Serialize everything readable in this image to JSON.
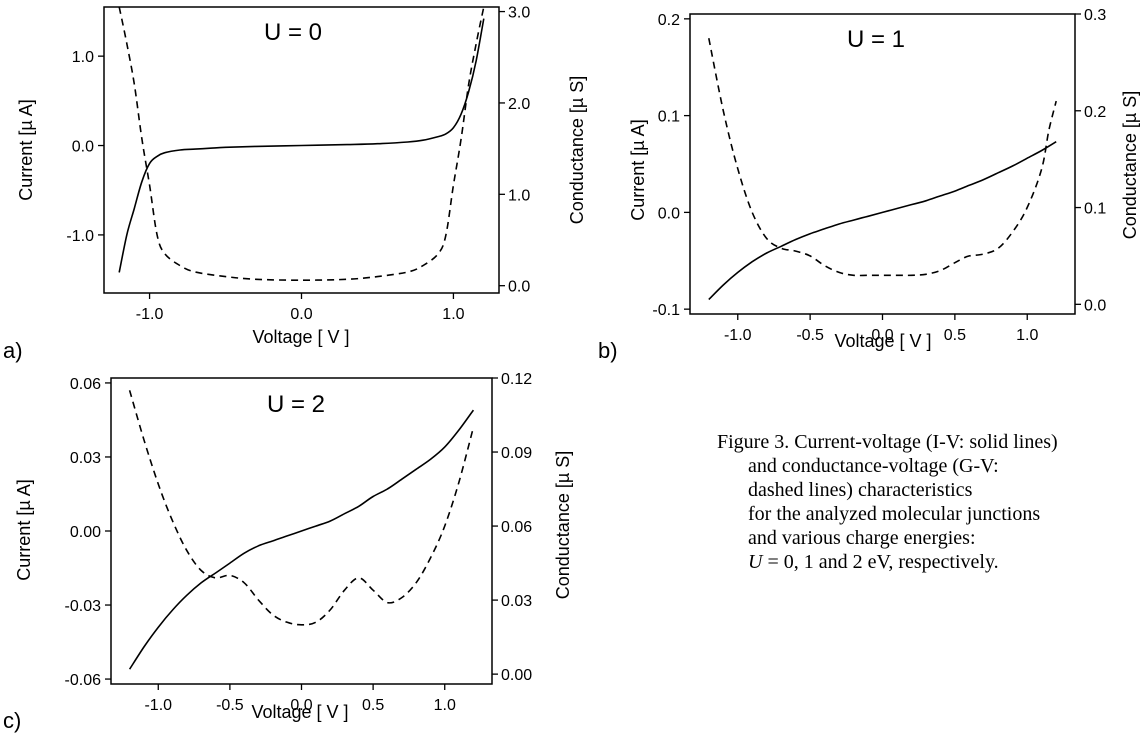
{
  "chart_data": [
    {
      "type": "line",
      "panel_label": "a)",
      "title": "U = 0",
      "xlabel": "Voltage [ V ]",
      "ylabel": "Current [µ A]",
      "y2label": "Conductance [µ S]",
      "xlim": [
        -1.3,
        1.3
      ],
      "ylim": [
        -1.65,
        1.55
      ],
      "y2lim": [
        -0.08,
        3.05
      ],
      "xticks": [
        -1.0,
        0.0,
        1.0
      ],
      "xtick_labels": [
        "-1.0",
        "0.0",
        "1.0"
      ],
      "yticks": [
        -1.0,
        0.0,
        1.0
      ],
      "ytick_labels": [
        "-1.0",
        "0.0",
        "1.0"
      ],
      "y2ticks": [
        0.0,
        1.0,
        2.0,
        3.0
      ],
      "y2tick_labels": [
        "0.0",
        "1.0",
        "2.0",
        "3.0"
      ],
      "series": [
        {
          "axis": "left",
          "style": "solid",
          "x": [
            -1.2,
            -1.15,
            -1.1,
            -1.05,
            -1.0,
            -0.95,
            -0.9,
            -0.8,
            -0.7,
            -0.6,
            -0.5,
            -0.3,
            0.0,
            0.3,
            0.5,
            0.7,
            0.8,
            0.9,
            0.95,
            1.0,
            1.05,
            1.1,
            1.15,
            1.2
          ],
          "y": [
            -1.42,
            -1.0,
            -0.7,
            -0.4,
            -0.2,
            -0.12,
            -0.08,
            -0.05,
            -0.04,
            -0.03,
            -0.02,
            -0.01,
            0.0,
            0.01,
            0.02,
            0.04,
            0.06,
            0.1,
            0.13,
            0.2,
            0.35,
            0.6,
            0.95,
            1.42
          ]
        },
        {
          "axis": "right",
          "style": "dashed",
          "x": [
            -1.2,
            -1.15,
            -1.1,
            -1.05,
            -1.0,
            -0.95,
            -0.9,
            -0.8,
            -0.7,
            -0.5,
            -0.3,
            0.0,
            0.3,
            0.5,
            0.7,
            0.8,
            0.9,
            0.95,
            1.0,
            1.05,
            1.1,
            1.15,
            1.2
          ],
          "y": [
            3.05,
            2.65,
            2.2,
            1.6,
            1.1,
            0.55,
            0.35,
            0.22,
            0.15,
            0.1,
            0.07,
            0.06,
            0.07,
            0.1,
            0.15,
            0.22,
            0.35,
            0.55,
            1.1,
            1.6,
            2.2,
            2.65,
            3.05
          ]
        }
      ]
    },
    {
      "type": "line",
      "panel_label": "b)",
      "title": "U = 1",
      "xlabel": "Voltage [ V ]",
      "ylabel": "Current [µ A]",
      "y2label": "Conductance [µ S]",
      "xlim": [
        -1.33,
        1.33
      ],
      "ylim": [
        -0.105,
        0.205
      ],
      "y2lim": [
        -0.01,
        0.3
      ],
      "xticks": [
        -1.0,
        -0.5,
        0.0,
        0.5,
        1.0
      ],
      "xtick_labels": [
        "-1.0",
        "-0.5",
        "0.0",
        "0.5",
        "1.0"
      ],
      "yticks": [
        -0.1,
        0.0,
        0.1,
        0.2
      ],
      "ytick_labels": [
        "-0.1",
        "0.0",
        "0.1",
        "0.2"
      ],
      "y2ticks": [
        0.0,
        0.1,
        0.2,
        0.3
      ],
      "y2tick_labels": [
        "0.0",
        "0.1",
        "0.2",
        "0.3"
      ],
      "series": [
        {
          "axis": "left",
          "style": "solid",
          "x": [
            -1.2,
            -1.1,
            -1.0,
            -0.9,
            -0.8,
            -0.7,
            -0.6,
            -0.5,
            -0.4,
            -0.3,
            -0.2,
            -0.1,
            0.0,
            0.1,
            0.2,
            0.3,
            0.4,
            0.5,
            0.6,
            0.7,
            0.8,
            0.9,
            1.0,
            1.1,
            1.2
          ],
          "y": [
            -0.09,
            -0.075,
            -0.062,
            -0.051,
            -0.042,
            -0.035,
            -0.028,
            -0.022,
            -0.017,
            -0.012,
            -0.008,
            -0.004,
            0.0,
            0.004,
            0.008,
            0.012,
            0.017,
            0.022,
            0.028,
            0.034,
            0.041,
            0.048,
            0.056,
            0.064,
            0.073
          ]
        },
        {
          "axis": "right",
          "style": "dashed",
          "x": [
            -1.2,
            -1.1,
            -1.0,
            -0.9,
            -0.8,
            -0.7,
            -0.6,
            -0.5,
            -0.4,
            -0.3,
            -0.2,
            -0.1,
            0.0,
            0.1,
            0.2,
            0.3,
            0.4,
            0.5,
            0.55,
            0.6,
            0.7,
            0.8,
            0.9,
            1.0,
            1.1,
            1.15,
            1.2
          ],
          "y": [
            0.275,
            0.2,
            0.14,
            0.095,
            0.068,
            0.058,
            0.055,
            0.05,
            0.04,
            0.033,
            0.03,
            0.03,
            0.03,
            0.03,
            0.03,
            0.031,
            0.035,
            0.043,
            0.047,
            0.05,
            0.052,
            0.058,
            0.075,
            0.1,
            0.14,
            0.18,
            0.21
          ]
        }
      ]
    },
    {
      "type": "line",
      "panel_label": "c)",
      "title": "U = 2",
      "xlabel": "Voltage [ V ]",
      "ylabel": "Current [µ A]",
      "y2label": "Conductance [µ S]",
      "xlim": [
        -1.33,
        1.33
      ],
      "ylim": [
        -0.062,
        0.062
      ],
      "y2lim": [
        -0.004,
        0.12
      ],
      "xticks": [
        -1.0,
        -0.5,
        0.0,
        0.5,
        1.0
      ],
      "xtick_labels": [
        "-1.0",
        "-0.5",
        "0.0",
        "0.5",
        "1.0"
      ],
      "yticks": [
        -0.06,
        -0.03,
        0.0,
        0.03,
        0.06
      ],
      "ytick_labels": [
        "-0.06",
        "-0.03",
        "0.00",
        "0.03",
        "0.06"
      ],
      "y2ticks": [
        0.0,
        0.03,
        0.06,
        0.09,
        0.12
      ],
      "y2tick_labels": [
        "0.00",
        "0.03",
        "0.06",
        "0.09",
        "0.12"
      ],
      "series": [
        {
          "axis": "left",
          "style": "solid",
          "x": [
            -1.2,
            -1.1,
            -1.0,
            -0.9,
            -0.8,
            -0.7,
            -0.6,
            -0.5,
            -0.4,
            -0.3,
            -0.2,
            -0.1,
            0.0,
            0.1,
            0.2,
            0.3,
            0.4,
            0.5,
            0.6,
            0.7,
            0.8,
            0.9,
            1.0,
            1.1,
            1.2
          ],
          "y": [
            -0.056,
            -0.047,
            -0.039,
            -0.032,
            -0.026,
            -0.021,
            -0.017,
            -0.013,
            -0.009,
            -0.006,
            -0.004,
            -0.002,
            0.0,
            0.002,
            0.004,
            0.007,
            0.01,
            0.014,
            0.017,
            0.021,
            0.025,
            0.029,
            0.034,
            0.041,
            0.049
          ]
        },
        {
          "axis": "right",
          "style": "dashed",
          "x": [
            -1.2,
            -1.1,
            -1.0,
            -0.9,
            -0.8,
            -0.7,
            -0.6,
            -0.5,
            -0.4,
            -0.3,
            -0.2,
            -0.1,
            0.0,
            0.1,
            0.2,
            0.3,
            0.4,
            0.5,
            0.6,
            0.7,
            0.8,
            0.9,
            1.0,
            1.1,
            1.2
          ],
          "y": [
            0.115,
            0.095,
            0.077,
            0.062,
            0.05,
            0.042,
            0.039,
            0.04,
            0.037,
            0.03,
            0.024,
            0.021,
            0.02,
            0.021,
            0.026,
            0.034,
            0.039,
            0.034,
            0.029,
            0.031,
            0.037,
            0.047,
            0.06,
            0.078,
            0.1
          ]
        }
      ]
    }
  ],
  "caption": {
    "lines": [
      "Figure 3. Current-voltage (I-V: solid lines)",
      "and conductance-voltage (G-V:",
      "dashed lines) characteristics",
      "for the analyzed molecular junctions",
      "and various charge energies:"
    ],
    "last_line_symbol": "U",
    "last_line_text": " = 0, 1 and 2 eV, respectively."
  }
}
